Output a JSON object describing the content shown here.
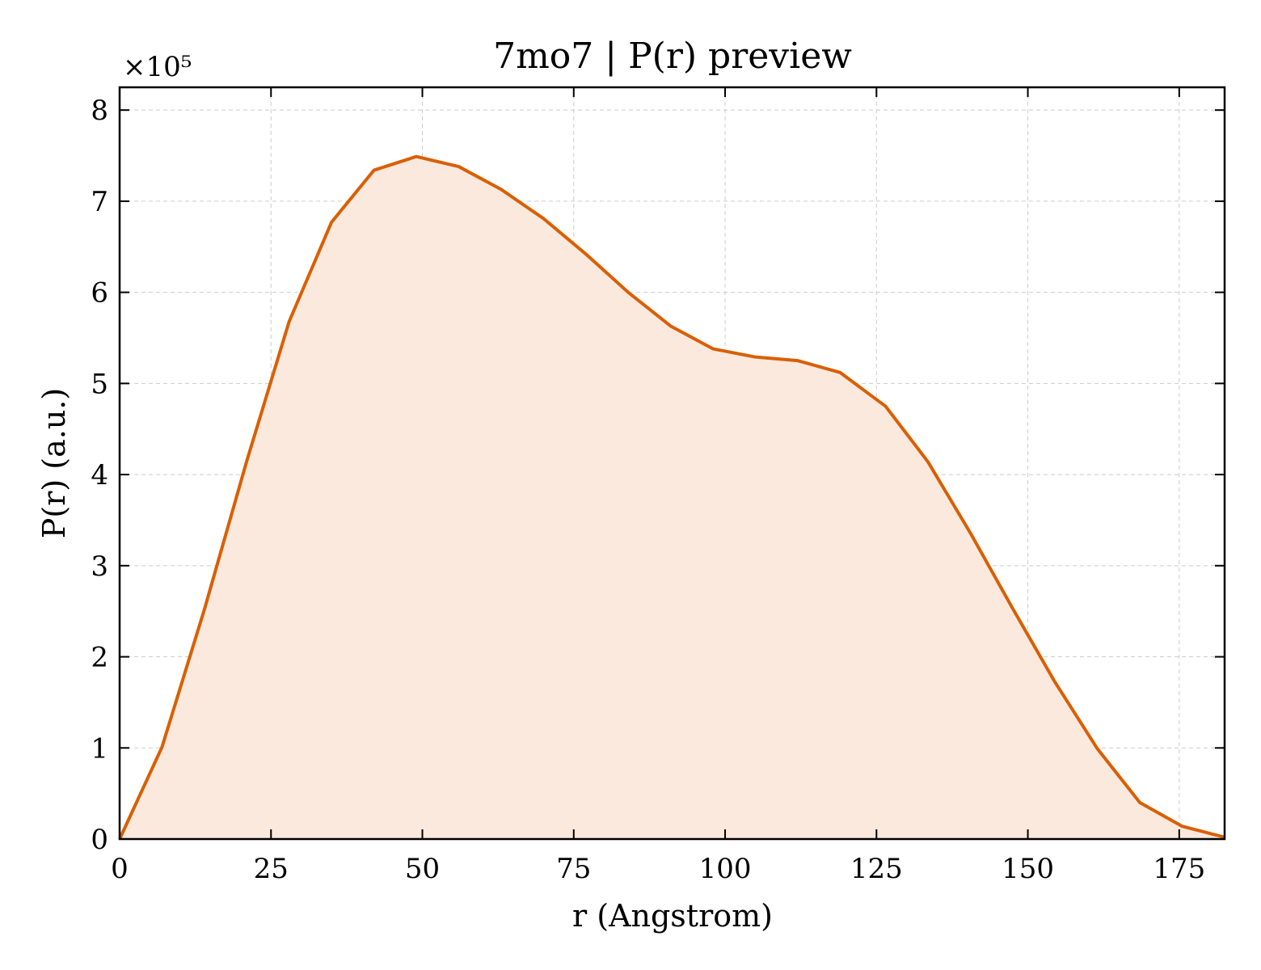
{
  "chart_data": {
    "type": "area",
    "title": "7mo7 | P(r) preview",
    "xlabel": "r (Angstrom)",
    "ylabel": "P(r) (a.u.)",
    "y_scale_label": "×10⁵",
    "xlim": [
      0,
      182.5
    ],
    "ylim": [
      0,
      8.25
    ],
    "x_ticks": [
      0,
      25,
      50,
      75,
      100,
      125,
      150,
      175
    ],
    "y_ticks": [
      0,
      1,
      2,
      3,
      4,
      5,
      6,
      7,
      8
    ],
    "grid": true,
    "line_color": "#d95f02",
    "fill_color": "#fbe9de",
    "series": [
      {
        "x": [
          0,
          7,
          14,
          21,
          28,
          35,
          42,
          49,
          56,
          63,
          70,
          77,
          84,
          91,
          98,
          105,
          112,
          119,
          126.5,
          133.5,
          140.5,
          147.5,
          154.5,
          161.5,
          168.5,
          175.5,
          182.5
        ],
        "y": [
          0,
          1.01,
          2.52,
          4.15,
          5.68,
          6.77,
          7.34,
          7.49,
          7.38,
          7.13,
          6.81,
          6.42,
          6.0,
          5.63,
          5.38,
          5.29,
          5.25,
          5.12,
          4.75,
          4.14,
          3.36,
          2.53,
          1.72,
          0.99,
          0.4,
          0.14,
          0.02
        ]
      }
    ]
  }
}
